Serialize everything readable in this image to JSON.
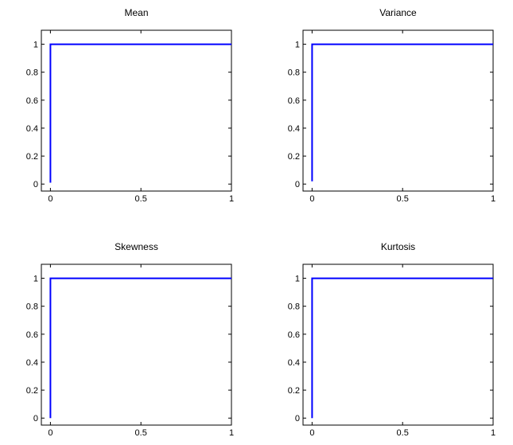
{
  "chart_data": [
    {
      "type": "line",
      "title": "Mean",
      "xlabel": "",
      "ylabel": "",
      "xlim": [
        -0.05,
        1
      ],
      "ylim": [
        -0.05,
        1.1
      ],
      "xticks": [
        0,
        0.5,
        1
      ],
      "xtick_labels": [
        "0",
        "0.5",
        "1"
      ],
      "yticks": [
        0,
        0.2,
        0.4,
        0.6,
        0.8,
        1
      ],
      "ytick_labels": [
        "0",
        "0.2",
        "0.4",
        "0.6",
        "0.8",
        "1"
      ],
      "grid": false,
      "series": [
        {
          "color": "#0000ff",
          "x": [
            0,
            0,
            1
          ],
          "y": [
            0.01,
            1,
            1
          ]
        }
      ]
    },
    {
      "type": "line",
      "title": "Variance",
      "xlabel": "",
      "ylabel": "",
      "xlim": [
        -0.05,
        1
      ],
      "ylim": [
        -0.05,
        1.1
      ],
      "xticks": [
        0,
        0.5,
        1
      ],
      "xtick_labels": [
        "0",
        "0.5",
        "1"
      ],
      "yticks": [
        0,
        0.2,
        0.4,
        0.6,
        0.8,
        1
      ],
      "ytick_labels": [
        "0",
        "0.2",
        "0.4",
        "0.6",
        "0.8",
        "1"
      ],
      "grid": false,
      "series": [
        {
          "color": "#0000ff",
          "x": [
            0,
            0,
            1
          ],
          "y": [
            0.02,
            1,
            1
          ]
        }
      ]
    },
    {
      "type": "line",
      "title": "Skewness",
      "xlabel": "",
      "ylabel": "",
      "xlim": [
        -0.05,
        1
      ],
      "ylim": [
        -0.05,
        1.1
      ],
      "xticks": [
        0,
        0.5,
        1
      ],
      "xtick_labels": [
        "0",
        "0.5",
        "1"
      ],
      "yticks": [
        0,
        0.2,
        0.4,
        0.6,
        0.8,
        1
      ],
      "ytick_labels": [
        "0",
        "0.2",
        "0.4",
        "0.6",
        "0.8",
        "1"
      ],
      "grid": false,
      "series": [
        {
          "color": "#0000ff",
          "x": [
            0,
            0,
            1
          ],
          "y": [
            0,
            1,
            1
          ]
        }
      ]
    },
    {
      "type": "line",
      "title": "Kurtosis",
      "xlabel": "",
      "ylabel": "",
      "xlim": [
        -0.05,
        1
      ],
      "ylim": [
        -0.05,
        1.1
      ],
      "xticks": [
        0,
        0.5,
        1
      ],
      "xtick_labels": [
        "0",
        "0.5",
        "1"
      ],
      "yticks": [
        0,
        0.2,
        0.4,
        0.6,
        0.8,
        1
      ],
      "ytick_labels": [
        "0",
        "0.2",
        "0.4",
        "0.6",
        "0.8",
        "1"
      ],
      "grid": false,
      "series": [
        {
          "color": "#0000ff",
          "x": [
            0,
            0,
            1
          ],
          "y": [
            0,
            1,
            1
          ]
        }
      ]
    }
  ]
}
